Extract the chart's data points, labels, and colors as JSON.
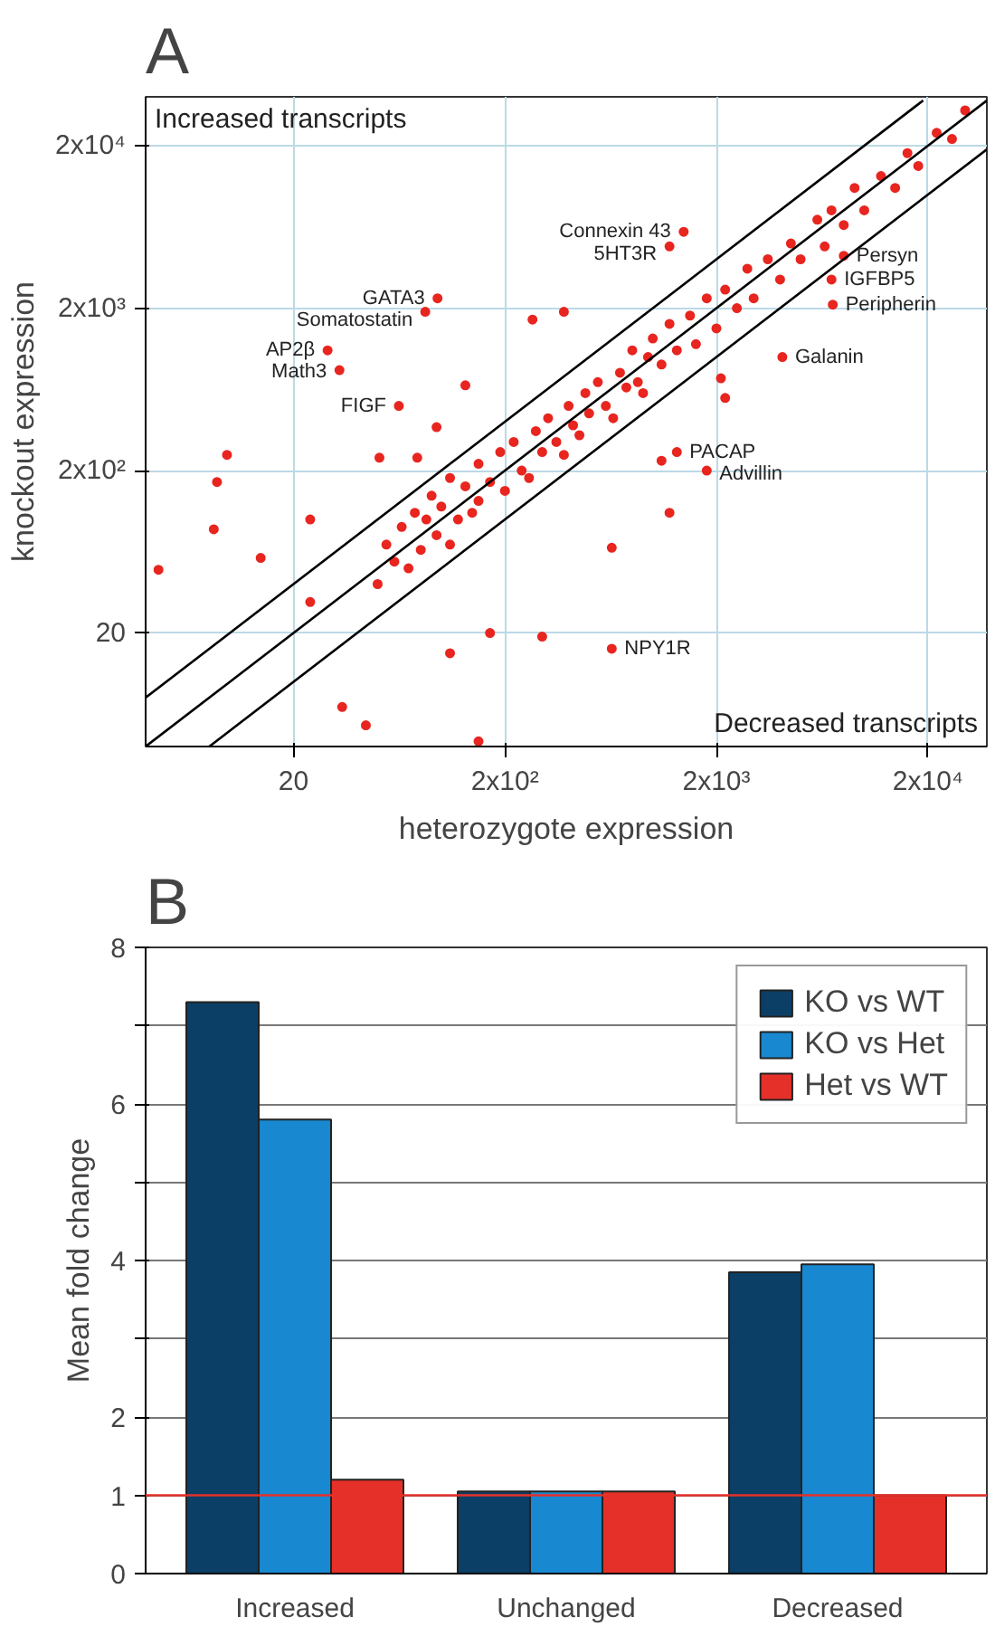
{
  "chart_data": [
    {
      "type": "scatter",
      "title": "A",
      "xlabel": "heterozygote expression",
      "ylabel": "knockout expression",
      "log": "xy",
      "grid": true,
      "xlim": [
        4,
        38000
      ],
      "ylim": [
        4,
        40000
      ],
      "xticks": [
        20,
        {
          "value": 200,
          "label": "2x10²"
        },
        {
          "value": 2000,
          "label": "2x10³"
        },
        {
          "value": 20000,
          "label": "2x10⁴"
        }
      ],
      "yticks": [
        20,
        {
          "value": 200,
          "label": "2x10²"
        },
        {
          "value": 2000,
          "label": "2x10³"
        },
        {
          "value": 20000,
          "label": "2x10⁴"
        }
      ],
      "series": [
        {
          "type": "scatter",
          "color": "#e8251f",
          "marker": "circle",
          "x": [
            50,
            55,
            60,
            65,
            70,
            75,
            80,
            85,
            90,
            95,
            100,
            110,
            110,
            120,
            130,
            140,
            150,
            150,
            170,
            190,
            200,
            220,
            240,
            260,
            280,
            300,
            320,
            350,
            380,
            400,
            420,
            450,
            480,
            500,
            550,
            600,
            650,
            700,
            750,
            800,
            850,
            900,
            950,
            1000,
            1100,
            1200,
            1300,
            1500,
            1600,
            1800,
            2000,
            2200,
            2500,
            2800,
            3000,
            3500,
            4000,
            4500,
            5000,
            6000,
            6500,
            7000,
            8000,
            9000,
            10000,
            12000,
            14000,
            16000,
            18000,
            22000,
            26000,
            30000,
            4.6,
            8.4,
            8.7,
            9.7,
            14,
            24,
            24,
            34,
            44,
            150,
            110,
            300,
            170,
            51,
            77,
            130,
            270,
            380,
            2200,
            1200,
            640,
            1100,
            2100,
            95,
            1400,
            1200,
            96,
            84,
            29,
            33,
            63,
            8000,
            7000,
            7100,
            4100,
            1300,
            1800,
            640
          ],
          "values": [
            40,
            70,
            55,
            90,
            50,
            110,
            65,
            100,
            140,
            80,
            120,
            70,
            180,
            100,
            160,
            110,
            220,
            130,
            170,
            260,
            150,
            300,
            200,
            180,
            350,
            260,
            420,
            300,
            250,
            500,
            380,
            330,
            600,
            450,
            700,
            500,
            420,
            800,
            650,
            1100,
            700,
            600,
            1000,
            1300,
            900,
            1600,
            1100,
            1800,
            1200,
            2300,
            1500,
            2600,
            2000,
            3500,
            2300,
            4000,
            3000,
            5000,
            4000,
            7000,
            4800,
            8000,
            6500,
            11000,
            8000,
            13000,
            11000,
            18000,
            15000,
            24000,
            22000,
            33000,
            49,
            87,
            170,
            250,
            58,
            100,
            31,
            7,
            5.4,
            4.3,
            15,
            19,
            20,
            240,
            240,
            670,
            1700,
            1900,
            560,
            110,
            67,
            230,
            740,
            370,
            5900,
            4800,
            2300,
            1900,
            1100,
            830,
            500,
            4200,
            3000,
            2100,
            1000,
            260,
            200,
            16
          ]
        },
        {
          "type": "line",
          "color": "#000000",
          "x": [
            4,
            19000
          ],
          "values": [
            8,
            38000
          ]
        },
        {
          "type": "line",
          "color": "#000000",
          "x": [
            4,
            38000
          ],
          "values": [
            4,
            38000
          ]
        },
        {
          "type": "line",
          "color": "#000000",
          "x": [
            8,
            38000
          ],
          "values": [
            4,
            19000
          ]
        }
      ],
      "annotations": [
        "Increased transcripts",
        "Decreased transcripts",
        {
          "text": "Connexin 43",
          "x": 1400,
          "y": 5900
        },
        {
          "text": "5HT3R",
          "x": 1200,
          "y": 4800
        },
        {
          "text": "GATA3",
          "x": 96,
          "y": 2300
        },
        {
          "text": "Somatostatin",
          "x": 84,
          "y": 1900
        },
        {
          "text": "AP2β",
          "x": 29,
          "y": 1100
        },
        {
          "text": "Math3",
          "x": 33,
          "y": 830
        },
        {
          "text": "FIGF",
          "x": 63,
          "y": 500
        },
        {
          "text": "Persyn",
          "x": 8000,
          "y": 4200
        },
        {
          "text": "IGFBP5",
          "x": 7000,
          "y": 3000
        },
        {
          "text": "Peripherin",
          "x": 7100,
          "y": 2100
        },
        {
          "text": "Galanin",
          "x": 4100,
          "y": 1000
        },
        {
          "text": "PACAP",
          "x": 1300,
          "y": 260
        },
        {
          "text": "Advillin",
          "x": 1800,
          "y": 200
        },
        {
          "text": "NPY1R",
          "x": 640,
          "y": 16
        }
      ]
    },
    {
      "type": "bar",
      "title": "B",
      "ylabel": "Mean fold change",
      "categories": [
        "Increased",
        "Unchanged",
        "Decreased"
      ],
      "ylim": [
        0,
        8
      ],
      "yticks": [
        0,
        1,
        2,
        {
          "value": 3,
          "label": null
        },
        4,
        {
          "value": 5,
          "label": null
        },
        6,
        {
          "value": 7,
          "label": null
        },
        8
      ],
      "grid": "y",
      "legend": "top right",
      "series": [
        {
          "name": "KO vs WT",
          "color": "#0b3f66",
          "values": [
            7.3,
            1.05,
            3.85
          ]
        },
        {
          "name": "KO vs Het",
          "color": "#1888d0",
          "values": [
            5.8,
            1.05,
            3.95
          ]
        },
        {
          "name": "Het vs WT",
          "color": "#e5302a",
          "values": [
            1.2,
            1.05,
            1.0
          ]
        }
      ],
      "ref_lines": [
        {
          "axis": "y",
          "value": 1,
          "label": null,
          "color": "#e5302a"
        }
      ]
    }
  ]
}
